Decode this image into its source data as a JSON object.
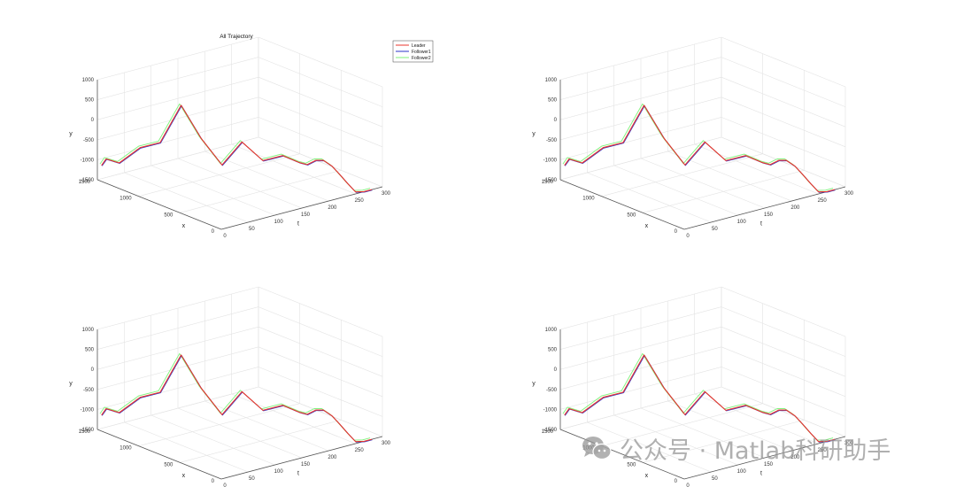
{
  "figure": {
    "background": "#ffffff",
    "grid_color": "#e3e3e3",
    "axis_color": "#555555"
  },
  "chart_data": [
    {
      "type": "line3d",
      "title": "All Trajectory",
      "xlabel": "t",
      "ylabel": "x",
      "zlabel": "y",
      "t_ticks": [
        "0",
        "50",
        "100",
        "150",
        "200",
        "250",
        "300"
      ],
      "x_ticks": [
        "0",
        "500",
        "1000",
        "1500"
      ],
      "y_ticks": [
        "-1500",
        "-1000",
        "-500",
        "0",
        "500",
        "1000"
      ],
      "tlim": [
        0,
        300
      ],
      "xlim": [
        0,
        1500
      ],
      "ylim": [
        -1500,
        1000
      ],
      "legend": {
        "position": "top-right",
        "entries": [
          "Leader",
          "Follower1",
          "Follower2"
        ]
      }
    },
    {
      "type": "line3d",
      "title": "",
      "xlabel": "t",
      "ylabel": "x",
      "zlabel": "y",
      "t_ticks": [
        "0",
        "50",
        "100",
        "150",
        "200",
        "250",
        "300"
      ],
      "x_ticks": [
        "0",
        "500",
        "1000",
        "1500"
      ],
      "y_ticks": [
        "-1500",
        "-1000",
        "-500",
        "0",
        "500",
        "1000"
      ],
      "tlim": [
        0,
        300
      ],
      "xlim": [
        0,
        1500
      ],
      "ylim": [
        -1500,
        1000
      ],
      "legend": null
    },
    {
      "type": "line3d",
      "title": "",
      "xlabel": "t",
      "ylabel": "x",
      "zlabel": "y",
      "t_ticks": [
        "0",
        "50",
        "100",
        "150",
        "200",
        "250",
        "300"
      ],
      "x_ticks": [
        "0",
        "500",
        "1000",
        "1500"
      ],
      "y_ticks": [
        "-1500",
        "-1000",
        "-500",
        "0",
        "500",
        "1000"
      ],
      "tlim": [
        0,
        300
      ],
      "xlim": [
        0,
        1500
      ],
      "ylim": [
        -1500,
        1000
      ],
      "legend": null
    },
    {
      "type": "line3d",
      "title": "",
      "xlabel": "t",
      "ylabel": "x",
      "zlabel": "y",
      "t_ticks": [
        "0",
        "50",
        "100",
        "150",
        "200",
        "250",
        "300"
      ],
      "x_ticks": [
        "0",
        "500",
        "1000",
        "1500"
      ],
      "y_ticks": [
        "-1500",
        "-1000",
        "-500",
        "0",
        "500",
        "1000"
      ],
      "tlim": [
        0,
        300
      ],
      "xlim": [
        0,
        1500
      ],
      "ylim": [
        -1500,
        1000
      ],
      "legend": null
    }
  ],
  "series": [
    {
      "name": "Leader",
      "color": "#e8342b"
    },
    {
      "name": "Follower1",
      "color": "#2b33c9"
    },
    {
      "name": "Follower2",
      "color": "#7ef27a"
    }
  ],
  "trajectory": {
    "t": [
      0,
      1,
      10,
      26,
      40,
      56,
      70,
      86,
      100,
      116,
      130,
      146,
      160,
      176,
      190,
      206,
      220,
      236,
      250,
      266,
      280
    ],
    "x": [
      1450,
      1400,
      1300,
      1150,
      1000,
      850,
      700,
      550,
      400,
      250,
      100,
      0,
      0,
      0,
      0,
      0,
      0,
      0,
      0,
      0,
      0
    ],
    "y": [
      -1100,
      -900,
      -950,
      -500,
      -300,
      700,
      -50,
      -650,
      0,
      -400,
      -200,
      -350,
      -450,
      -400,
      -450,
      -650,
      -900,
      -1200,
      -1450,
      -1500,
      -1500
    ]
  },
  "watermark": {
    "text": "公众号 · Matlab科研助手",
    "icon": "wechat-icon"
  }
}
